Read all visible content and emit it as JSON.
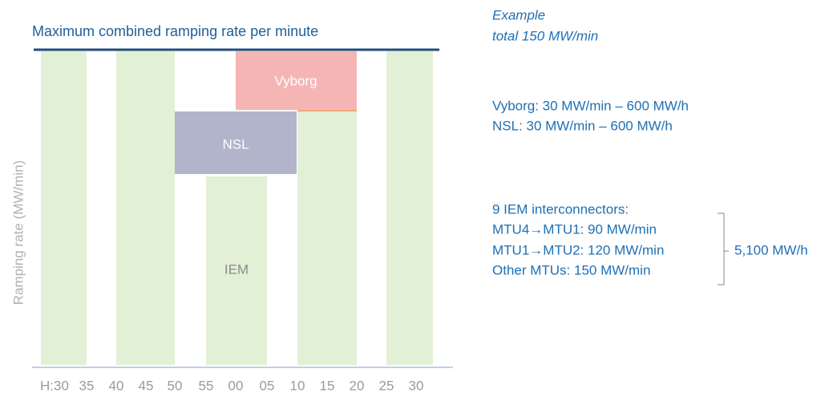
{
  "title": "Maximum combined ramping rate per minute",
  "y_axis_label": "Ramping rate (MW/min)",
  "x_ticks": [
    "H:30",
    "35",
    "40",
    "45",
    "50",
    "55",
    "00",
    "05",
    "10",
    "15",
    "20",
    "25",
    "30"
  ],
  "blocks": {
    "vyborg": "Vyborg",
    "nsl": "NSL",
    "iem": "IEM"
  },
  "example": {
    "line1": "Example",
    "line2": "total 150 MW/min"
  },
  "limits": {
    "vyborg": "Vyborg: 30 MW/min – 600 MW/h",
    "nsl": "NSL: 30 MW/min – 600 MW/h"
  },
  "iem": {
    "heading": "9 IEM  interconnectors:",
    "lines": [
      "MTU4→MTU1: 90 MW/min",
      "MTU1→MTU2: 120 MW/min",
      "Other MTUs: 150 MW/min"
    ],
    "total": "5,100 MW/h"
  }
}
